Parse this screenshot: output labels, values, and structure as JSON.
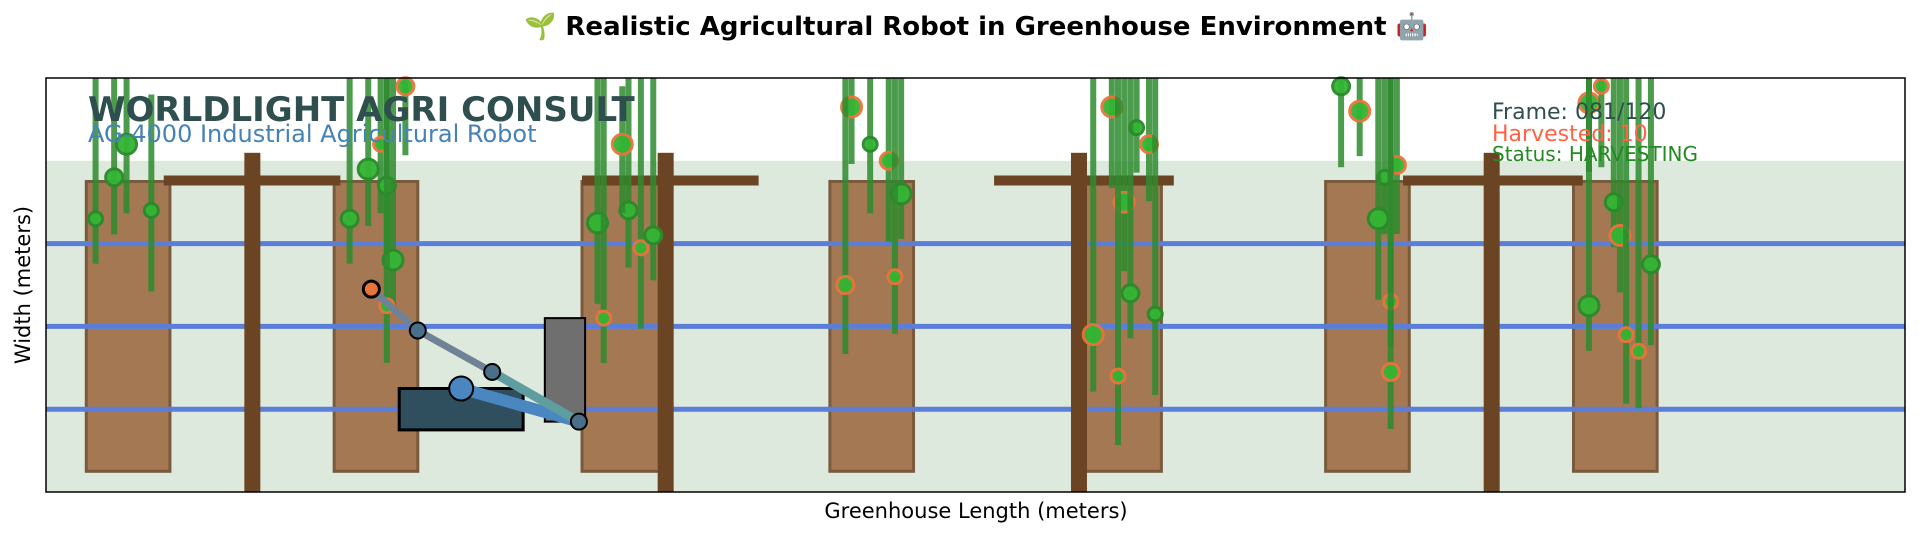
{
  "title": "🌱 Realistic Agricultural Robot in Greenhouse Environment 🤖",
  "brand": {
    "company": "WORLDLIGHT AGRI CONSULT",
    "model": "AG-4000 Industrial Agricultural Robot"
  },
  "status_panel": {
    "frame": "Frame: 081/120",
    "harvested": "Harvested: 10",
    "status": "Status: HARVESTING"
  },
  "colors": {
    "floor": "#dde9dd",
    "bed": "#a47852",
    "bed_edge": "#7a5a3c",
    "post": "#6b4423",
    "rail": "#5b7fd8",
    "stem": "#2e8b2e",
    "fruit_green": "#33b533",
    "fruit_ripe": "#e8743b",
    "robot_body": "#2f4f5f",
    "robot_arm": "#4a86c0",
    "robot_gripper_arm": "#6f8296",
    "robot_column": "#6f6f6f",
    "brand_text": "#2f4f4f",
    "model_text": "#4682b4",
    "harvested_text": "#ff6347",
    "status_text": "#228b22"
  },
  "chart_data": {
    "type": "scatter",
    "title": "🌱 Realistic Agricultural Robot in Greenhouse Environment 🤖",
    "xlabel": "Greenhouse Length (meters)",
    "ylabel": "Width (meters)",
    "xlim": [
      0,
      30
    ],
    "ylim": [
      0,
      5
    ],
    "ticks": "hidden",
    "grid": false,
    "floor_band": {
      "y0": 0,
      "y1": 4
    },
    "rails_y": [
      3,
      2,
      1
    ],
    "growing_beds": [
      {
        "x0": 0.65,
        "x1": 2.0,
        "y0": 0.25,
        "y1": 3.75
      },
      {
        "x0": 4.65,
        "x1": 6.0,
        "y0": 0.25,
        "y1": 3.75
      },
      {
        "x0": 8.65,
        "x1": 10.0,
        "y0": 0.25,
        "y1": 3.75
      },
      {
        "x0": 12.65,
        "x1": 14.0,
        "y0": 0.25,
        "y1": 3.75
      },
      {
        "x0": 16.65,
        "x1": 18.0,
        "y0": 0.25,
        "y1": 3.75
      },
      {
        "x0": 20.65,
        "x1": 22.0,
        "y0": 0.25,
        "y1": 3.75
      },
      {
        "x0": 24.65,
        "x1": 26.0,
        "y0": 0.25,
        "y1": 3.75
      }
    ],
    "support_posts": [
      {
        "x": 3.33,
        "bar": [
          1.9,
          4.75
        ],
        "bar_y": 3.75
      },
      {
        "x": 10.0,
        "bar": [
          8.65,
          11.5
        ],
        "bar_y": 3.75
      },
      {
        "x": 16.67,
        "bar": [
          15.3,
          18.2
        ],
        "bar_y": 3.75
      },
      {
        "x": 23.33,
        "bar": [
          21.9,
          24.8
        ],
        "bar_y": 3.75
      }
    ],
    "plants": [
      {
        "x": 0.8,
        "y": 3.3,
        "top": 5,
        "ripe": false
      },
      {
        "x": 1.1,
        "y": 3.8,
        "top": 5,
        "ripe": false
      },
      {
        "x": 1.3,
        "y": 4.2,
        "top": 5,
        "ripe": false
      },
      {
        "x": 1.7,
        "y": 3.4,
        "top": 4.8,
        "ripe": false
      },
      {
        "x": 4.9,
        "y": 3.3,
        "top": 5,
        "ripe": false
      },
      {
        "x": 5.2,
        "y": 3.9,
        "top": 5,
        "ripe": false
      },
      {
        "x": 5.4,
        "y": 4.2,
        "top": 5,
        "ripe": true
      },
      {
        "x": 5.5,
        "y": 3.7,
        "top": 5,
        "ripe": false
      },
      {
        "x": 5.6,
        "y": 2.8,
        "top": 5,
        "ripe": false
      },
      {
        "x": 5.5,
        "y": 2.25,
        "top": 5,
        "ripe": true
      },
      {
        "x": 5.8,
        "y": 4.9,
        "top": 5,
        "ripe": true
      },
      {
        "x": 8.9,
        "y": 3.25,
        "top": 5,
        "ripe": false
      },
      {
        "x": 9.0,
        "y": 2.1,
        "top": 5,
        "ripe": true
      },
      {
        "x": 9.4,
        "y": 3.4,
        "top": 5,
        "ripe": false
      },
      {
        "x": 9.3,
        "y": 4.2,
        "top": 4.9,
        "ripe": true
      },
      {
        "x": 9.6,
        "y": 2.95,
        "top": 5,
        "ripe": true
      },
      {
        "x": 9.8,
        "y": 3.1,
        "top": 5,
        "ripe": false
      },
      {
        "x": 13.0,
        "y": 4.65,
        "top": 5,
        "ripe": true
      },
      {
        "x": 13.3,
        "y": 4.2,
        "top": 5,
        "ripe": false
      },
      {
        "x": 13.6,
        "y": 4.0,
        "top": 5,
        "ripe": true
      },
      {
        "x": 13.8,
        "y": 3.6,
        "top": 5,
        "ripe": false
      },
      {
        "x": 13.7,
        "y": 2.6,
        "top": 5,
        "ripe": true
      },
      {
        "x": 12.9,
        "y": 2.5,
        "top": 5,
        "ripe": true
      },
      {
        "x": 17.2,
        "y": 4.65,
        "top": 5,
        "ripe": true
      },
      {
        "x": 17.6,
        "y": 4.4,
        "top": 5,
        "ripe": false
      },
      {
        "x": 17.8,
        "y": 4.2,
        "top": 5,
        "ripe": true
      },
      {
        "x": 17.4,
        "y": 3.5,
        "top": 5,
        "ripe": true
      },
      {
        "x": 17.9,
        "y": 2.15,
        "top": 5,
        "ripe": false
      },
      {
        "x": 17.5,
        "y": 2.4,
        "top": 5,
        "ripe": false
      },
      {
        "x": 16.9,
        "y": 1.9,
        "top": 5,
        "ripe": true
      },
      {
        "x": 17.3,
        "y": 1.4,
        "top": 5,
        "ripe": true
      },
      {
        "x": 20.9,
        "y": 4.9,
        "top": 5,
        "ripe": false
      },
      {
        "x": 21.2,
        "y": 4.6,
        "top": 5,
        "ripe": true
      },
      {
        "x": 21.6,
        "y": 3.8,
        "top": 5,
        "ripe": false
      },
      {
        "x": 21.8,
        "y": 3.95,
        "top": 5,
        "ripe": true
      },
      {
        "x": 21.5,
        "y": 3.3,
        "top": 5,
        "ripe": false
      },
      {
        "x": 21.7,
        "y": 2.3,
        "top": 5,
        "ripe": true
      },
      {
        "x": 21.7,
        "y": 1.45,
        "top": 5,
        "ripe": true
      },
      {
        "x": 24.9,
        "y": 4.7,
        "top": 5,
        "ripe": true
      },
      {
        "x": 25.1,
        "y": 4.9,
        "top": 5,
        "ripe": true
      },
      {
        "x": 25.3,
        "y": 3.5,
        "top": 5,
        "ripe": false
      },
      {
        "x": 25.4,
        "y": 3.1,
        "top": 5,
        "ripe": true
      },
      {
        "x": 25.5,
        "y": 1.9,
        "top": 5,
        "ripe": true
      },
      {
        "x": 25.9,
        "y": 2.75,
        "top": 5,
        "ripe": false
      },
      {
        "x": 24.9,
        "y": 2.25,
        "top": 5,
        "ripe": false
      },
      {
        "x": 25.7,
        "y": 1.7,
        "top": 5,
        "ripe": true
      }
    ],
    "robot": {
      "platform": {
        "x0": 5.7,
        "x1": 7.7,
        "y0": 0.75,
        "y1": 1.25
      },
      "column": {
        "x0": 8.05,
        "x1": 8.7,
        "y0": 0.85,
        "y1": 2.1
      },
      "arm_upper": [
        [
          6.7,
          1.25
        ],
        [
          8.6,
          0.85
        ]
      ],
      "arm_boom": [
        [
          5.25,
          2.45
        ],
        [
          6.0,
          1.95
        ],
        [
          7.2,
          1.45
        ],
        [
          8.6,
          0.85
        ]
      ],
      "joints": [
        [
          6.7,
          1.25
        ],
        [
          6.0,
          1.95
        ],
        [
          7.2,
          1.45
        ],
        [
          8.6,
          0.85
        ]
      ],
      "gripper": [
        5.25,
        2.45
      ]
    }
  }
}
